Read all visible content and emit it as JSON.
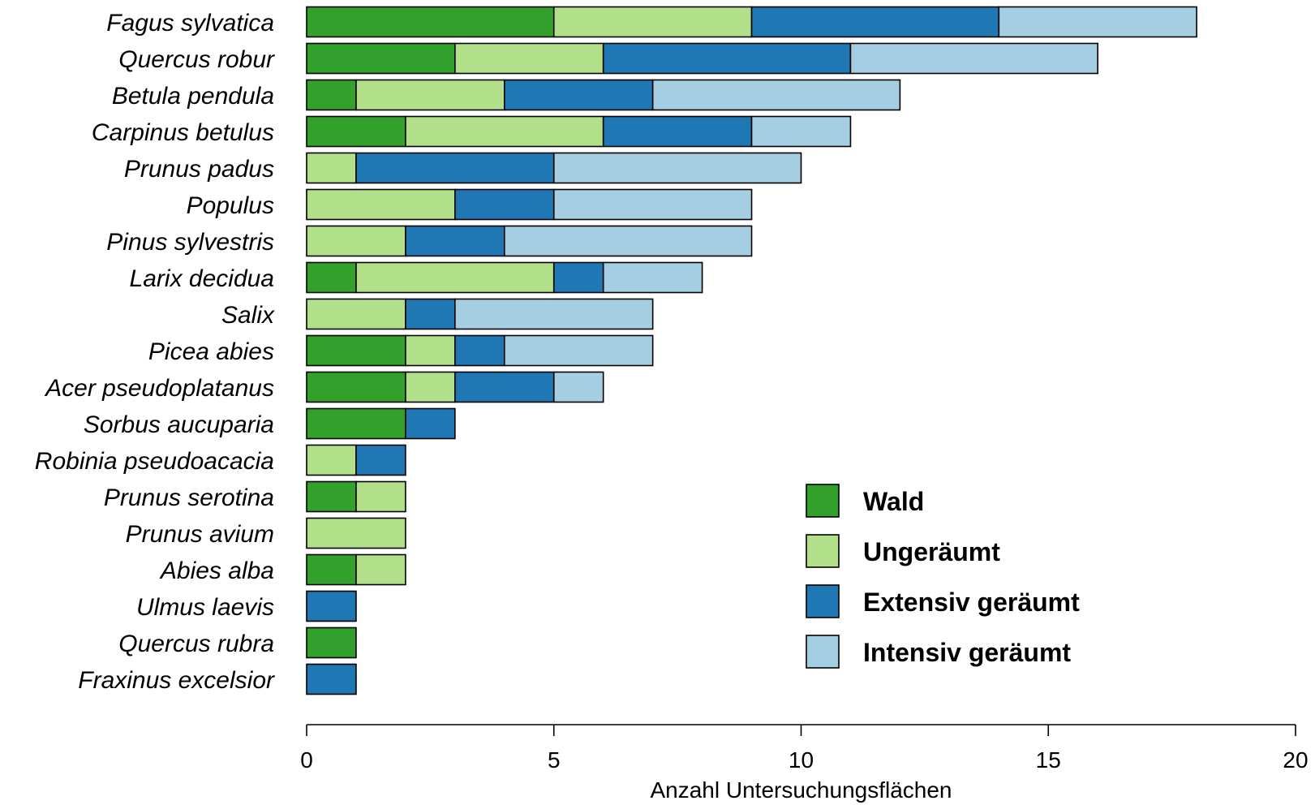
{
  "chart_data": {
    "type": "bar",
    "orientation": "horizontal",
    "stacked": true,
    "title": "",
    "xlabel": "Anzahl Untersuchungsflächen",
    "ylabel": "",
    "xlim": [
      0,
      20
    ],
    "xticks": [
      0,
      5,
      10,
      15,
      20
    ],
    "grid": false,
    "legend_position": "bottom-right",
    "categories": [
      "Fagus sylvatica",
      "Quercus robur",
      "Betula pendula",
      "Carpinus betulus",
      "Prunus padus",
      "Populus",
      "Pinus sylvestris",
      "Larix decidua",
      "Salix",
      "Picea abies",
      "Acer pseudoplatanus",
      "Sorbus aucuparia",
      "Robinia pseudoacacia",
      "Prunus serotina",
      "Prunus avium",
      "Abies alba",
      "Ulmus laevis",
      "Quercus rubra",
      "Fraxinus excelsior"
    ],
    "series": [
      {
        "name": "Wald",
        "color": "#33a02c",
        "values": [
          5,
          3,
          1,
          2,
          0,
          0,
          0,
          1,
          0,
          2,
          2,
          2,
          0,
          1,
          0,
          1,
          0,
          1,
          0
        ]
      },
      {
        "name": "Ungeräumt",
        "color": "#b2df8a",
        "values": [
          4,
          3,
          3,
          4,
          1,
          3,
          2,
          4,
          2,
          1,
          1,
          0,
          1,
          1,
          2,
          1,
          0,
          0,
          0
        ]
      },
      {
        "name": "Extensiv geräumt",
        "color": "#1f78b4",
        "values": [
          5,
          5,
          3,
          3,
          4,
          2,
          2,
          1,
          1,
          1,
          2,
          1,
          1,
          0,
          0,
          0,
          1,
          0,
          1
        ]
      },
      {
        "name": "Intensiv geräumt",
        "color": "#a6cee3",
        "values": [
          4,
          5,
          5,
          2,
          5,
          4,
          5,
          2,
          4,
          3,
          1,
          0,
          0,
          0,
          0,
          0,
          0,
          0,
          0
        ]
      }
    ]
  }
}
